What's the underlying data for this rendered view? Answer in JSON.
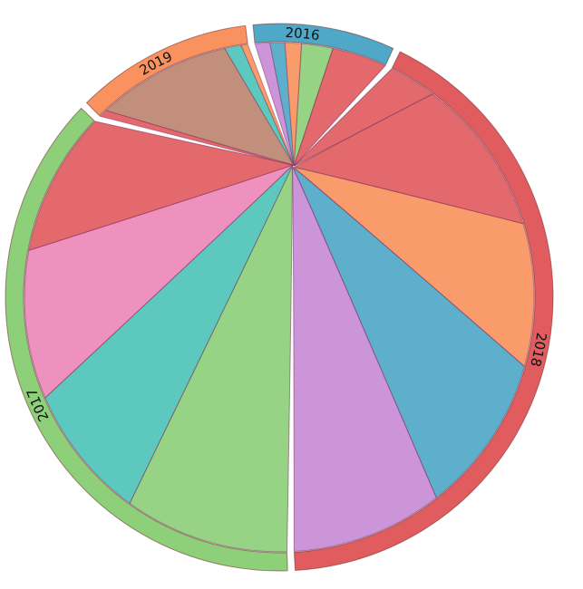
{
  "chart_data": {
    "type": "chord",
    "groups": [
      {
        "name": "2016",
        "total": 4,
        "color": "#4fa8c8"
      },
      {
        "name": "2018",
        "total": 20,
        "color": "#e15c5f"
      },
      {
        "name": "2017",
        "total": 18,
        "color": "#8ecf79"
      },
      {
        "name": "2019",
        "total": 5,
        "color": "#f9925e"
      }
    ],
    "segments": [
      {
        "group": "2016",
        "value": 0.45,
        "color": "#c88bd6"
      },
      {
        "group": "2016",
        "value": 0.45,
        "color": "#4fa8c8"
      },
      {
        "group": "2016",
        "value": 0.5,
        "color": "#f9925e"
      },
      {
        "group": "2016",
        "value": 0.95,
        "color": "#8ecf79"
      },
      {
        "group": "2016",
        "value": 1.65,
        "color": "#e15c5f"
      },
      {
        "group": "2018",
        "value": 1.5,
        "color": "#e15c5f"
      },
      {
        "group": "2018",
        "value": 5.0,
        "color": "#e15c5f"
      },
      {
        "group": "2018",
        "value": 4.5,
        "color": "#f9925e"
      },
      {
        "group": "2018",
        "value": 5.0,
        "color": "#4fa8c8"
      },
      {
        "group": "2018",
        "value": 4.8,
        "color": "#c88bd6"
      },
      {
        "group": "2017",
        "value": 4.9,
        "color": "#8ecf79"
      },
      {
        "group": "2017",
        "value": 4.0,
        "color": "#4fc4b8"
      },
      {
        "group": "2017",
        "value": 4.4,
        "color": "#ee88ba"
      },
      {
        "group": "2017",
        "value": 4.3,
        "color": "#e15c5f"
      },
      {
        "group": "2019",
        "value": 0.25,
        "color": "#e15c5f"
      },
      {
        "group": "2019",
        "value": 4.05,
        "color": "#be8572"
      },
      {
        "group": "2019",
        "value": 0.5,
        "color": "#4fc4b8"
      },
      {
        "group": "2019",
        "value": 0.2,
        "color": "#f9925e"
      }
    ],
    "legend": false,
    "grid": false
  }
}
